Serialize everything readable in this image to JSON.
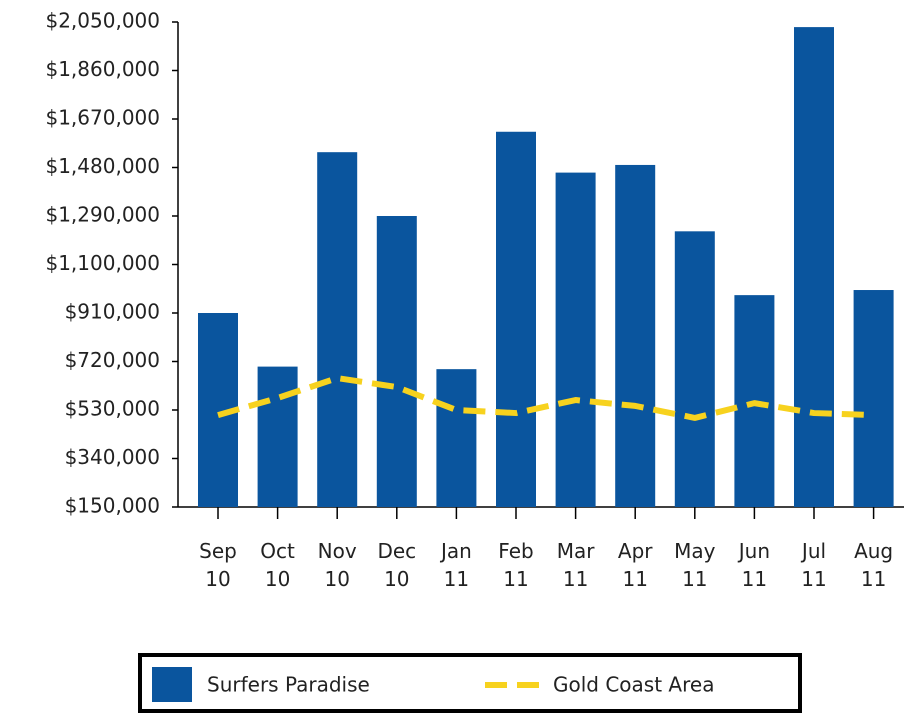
{
  "chart_data": {
    "type": "bar",
    "categories": [
      "Sep 10",
      "Oct 10",
      "Nov 10",
      "Dec 10",
      "Jan 11",
      "Feb 11",
      "Mar 11",
      "Apr 11",
      "May 11",
      "Jun 11",
      "Jul 11",
      "Aug 11"
    ],
    "series": [
      {
        "name": "Surfers Paradise",
        "type": "bar",
        "color": "#0a559e",
        "values": [
          910000,
          700000,
          1540000,
          1290000,
          690000,
          1620000,
          1460000,
          1490000,
          1230000,
          980000,
          2030000,
          1000000
        ]
      },
      {
        "name": "Gold Coast Area",
        "type": "line",
        "color": "#f7d21e",
        "dashed": true,
        "values": [
          510000,
          577000,
          655000,
          620000,
          530000,
          518000,
          569000,
          546000,
          499000,
          557000,
          518000,
          510000
        ]
      }
    ],
    "ylim": [
      150000,
      2050000
    ],
    "yticks": [
      {
        "value": 150000,
        "label": "$150,000"
      },
      {
        "value": 340000,
        "label": "$340,000"
      },
      {
        "value": 530000,
        "label": "$530,000"
      },
      {
        "value": 720000,
        "label": "$720,000"
      },
      {
        "value": 910000,
        "label": "$910,000"
      },
      {
        "value": 1100000,
        "label": "$1,100,000"
      },
      {
        "value": 1290000,
        "label": "$1,290,000"
      },
      {
        "value": 1480000,
        "label": "$1,480,000"
      },
      {
        "value": 1670000,
        "label": "$1,670,000"
      },
      {
        "value": 1860000,
        "label": "$1,860,000"
      },
      {
        "value": 2050000,
        "label": "$2,050,000"
      }
    ],
    "legend": "bottom"
  }
}
